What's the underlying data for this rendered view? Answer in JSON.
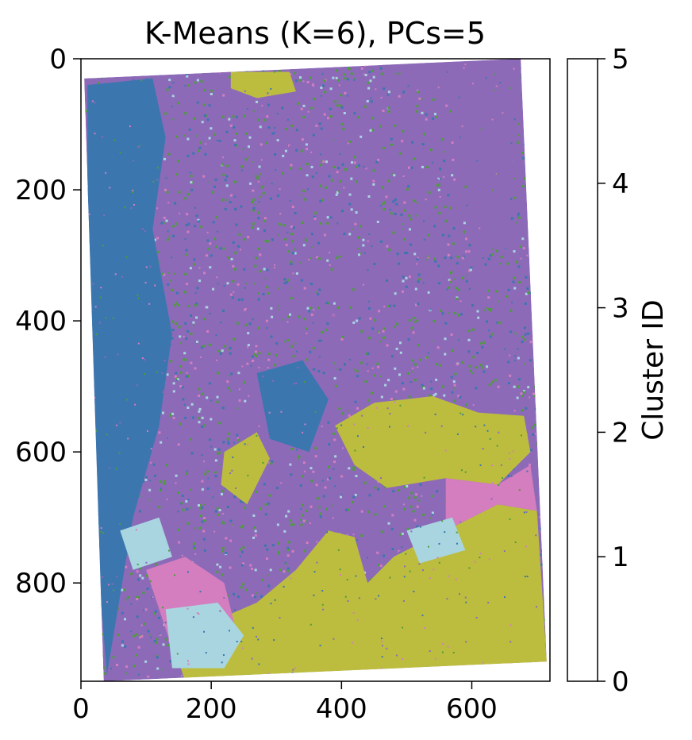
{
  "chart_data": {
    "type": "heatmap",
    "title": "K-Means (K=6), PCs=5",
    "xlabel": "",
    "ylabel": "",
    "xlim": [
      0,
      720
    ],
    "ylim": [
      950,
      0
    ],
    "x_ticks": [
      0,
      200,
      400,
      600
    ],
    "y_ticks": [
      0,
      200,
      400,
      600,
      800
    ],
    "grid": false,
    "colorbar": {
      "label": "Cluster ID",
      "range": [
        0,
        5
      ],
      "ticks": [
        0,
        1,
        2,
        3,
        4,
        5
      ],
      "classes": [
        {
          "id": 0,
          "color": "#3c76af"
        },
        {
          "id": 1,
          "color": "#4e9c3c"
        },
        {
          "id": 2,
          "color": "#8c6ab8"
        },
        {
          "id": 3,
          "color": "#d47dbf"
        },
        {
          "id": 4,
          "color": "#bcbd3f"
        },
        {
          "id": 5,
          "color": "#a9d5e0"
        }
      ]
    },
    "image_footprint": [
      [
        5,
        30
      ],
      [
        675,
        0
      ],
      [
        715,
        920
      ],
      [
        35,
        950
      ]
    ],
    "regions": [
      {
        "cluster": 2,
        "polygon": [
          [
            460,
            0
          ],
          [
            680,
            0
          ],
          [
            670,
            40
          ],
          [
            655,
            290
          ],
          [
            600,
            290
          ],
          [
            590,
            150
          ],
          [
            570,
            70
          ],
          [
            470,
            30
          ]
        ]
      },
      {
        "cluster": 4,
        "polygon": [
          [
            230,
            20
          ],
          [
            320,
            20
          ],
          [
            330,
            50
          ],
          [
            270,
            60
          ],
          [
            230,
            45
          ]
        ]
      },
      {
        "cluster": 4,
        "polygon": [
          [
            390,
            560
          ],
          [
            450,
            525
          ],
          [
            540,
            515
          ],
          [
            610,
            540
          ],
          [
            680,
            545
          ],
          [
            690,
            600
          ],
          [
            640,
            650
          ],
          [
            560,
            640
          ],
          [
            470,
            655
          ],
          [
            420,
            620
          ]
        ]
      },
      {
        "cluster": 4,
        "polygon": [
          [
            220,
            600
          ],
          [
            270,
            570
          ],
          [
            290,
            610
          ],
          [
            255,
            680
          ],
          [
            215,
            650
          ]
        ]
      },
      {
        "cluster": 4,
        "polygon": [
          [
            150,
            920
          ],
          [
            200,
            860
          ],
          [
            270,
            830
          ],
          [
            330,
            780
          ],
          [
            380,
            720
          ],
          [
            420,
            730
          ],
          [
            440,
            800
          ],
          [
            480,
            760
          ],
          [
            560,
            720
          ],
          [
            640,
            680
          ],
          [
            700,
            690
          ],
          [
            715,
            920
          ],
          [
            600,
            930
          ],
          [
            300,
            940
          ],
          [
            160,
            950
          ]
        ]
      },
      {
        "cluster": 3,
        "polygon": [
          [
            560,
            640
          ],
          [
            640,
            650
          ],
          [
            690,
            620
          ],
          [
            700,
            690
          ],
          [
            640,
            680
          ],
          [
            560,
            720
          ]
        ]
      },
      {
        "cluster": 3,
        "polygon": [
          [
            100,
            780
          ],
          [
            160,
            760
          ],
          [
            220,
            800
          ],
          [
            240,
            880
          ],
          [
            200,
            920
          ],
          [
            140,
            900
          ]
        ]
      },
      {
        "cluster": 0,
        "polygon": [
          [
            10,
            40
          ],
          [
            110,
            30
          ],
          [
            130,
            120
          ],
          [
            110,
            260
          ],
          [
            140,
            420
          ],
          [
            120,
            560
          ],
          [
            80,
            700
          ],
          [
            40,
            940
          ],
          [
            20,
            700
          ],
          [
            15,
            400
          ],
          [
            10,
            200
          ]
        ]
      },
      {
        "cluster": 0,
        "polygon": [
          [
            270,
            480
          ],
          [
            340,
            460
          ],
          [
            380,
            520
          ],
          [
            350,
            600
          ],
          [
            290,
            580
          ]
        ]
      },
      {
        "cluster": 5,
        "polygon": [
          [
            130,
            840
          ],
          [
            210,
            830
          ],
          [
            250,
            880
          ],
          [
            220,
            930
          ],
          [
            140,
            930
          ]
        ]
      },
      {
        "cluster": 5,
        "polygon": [
          [
            60,
            720
          ],
          [
            120,
            700
          ],
          [
            140,
            760
          ],
          [
            80,
            780
          ]
        ]
      },
      {
        "cluster": 5,
        "polygon": [
          [
            500,
            720
          ],
          [
            570,
            700
          ],
          [
            590,
            750
          ],
          [
            520,
            770
          ]
        ]
      }
    ]
  }
}
